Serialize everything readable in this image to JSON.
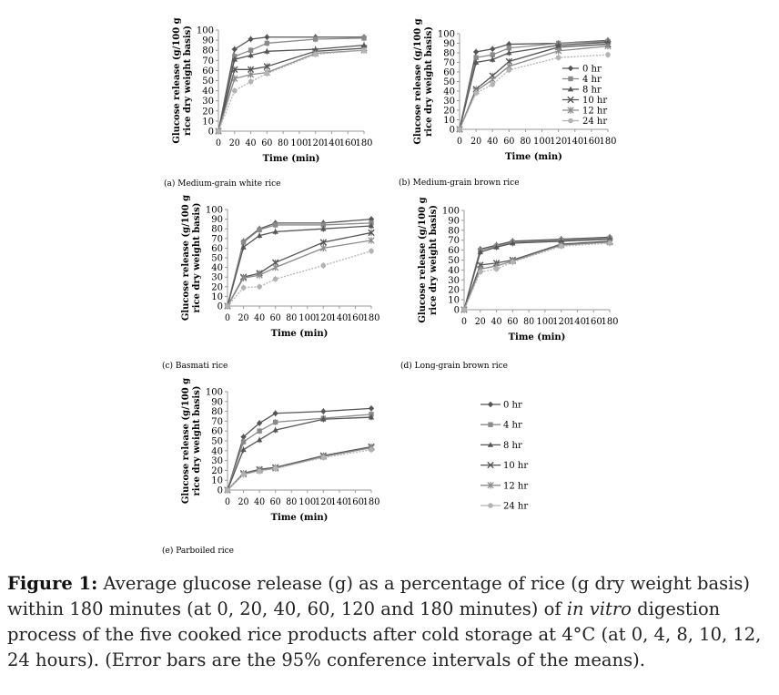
{
  "colors": {
    "dark": "#555555",
    "mid": "#8a8a8a",
    "light": "#b3b3b3",
    "axis": "#9a9a9a"
  },
  "chart_data": [
    {
      "id": "a",
      "type": "line",
      "caption": "(a) Medium-grain white rice",
      "xlabel": "Time (min)",
      "ylabel_line1": "Glucose release (g/100 g",
      "ylabel_line2": "rice dry weight basis)",
      "xticks": [
        "0",
        "20",
        "40",
        "60",
        "80",
        "100",
        "120",
        "140",
        "160",
        "180"
      ],
      "yticks": [
        "0",
        "10",
        "20",
        "30",
        "40",
        "50",
        "60",
        "70",
        "80",
        "90",
        "100"
      ],
      "x": [
        0,
        20,
        40,
        60,
        120,
        180
      ],
      "xlim": [
        0,
        180
      ],
      "ylim": [
        0,
        100
      ],
      "legend": "none",
      "series": [
        {
          "name": "0 hr",
          "values": [
            0,
            81,
            91,
            93,
            93,
            93
          ]
        },
        {
          "name": "4 hr",
          "values": [
            0,
            74,
            80,
            87,
            91,
            92
          ]
        },
        {
          "name": "8 hr",
          "values": [
            0,
            71,
            75,
            79,
            81,
            85
          ]
        },
        {
          "name": "10 hr",
          "values": [
            0,
            61,
            61,
            64,
            79,
            82
          ]
        },
        {
          "name": "12 hr",
          "values": [
            0,
            52,
            56,
            58,
            77,
            80
          ]
        },
        {
          "name": "24 hr",
          "values": [
            0,
            40,
            49,
            57,
            76,
            80
          ]
        }
      ]
    },
    {
      "id": "b",
      "type": "line",
      "caption": "(b) Medium-grain brown rice",
      "xlabel": "Time (min)",
      "ylabel_line1": "Glucose release (g/100 g",
      "ylabel_line2": "rice dry weight basis)",
      "xticks": [
        "0",
        "20",
        "40",
        "60",
        "80",
        "100",
        "120",
        "140",
        "160",
        "180"
      ],
      "yticks": [
        "0",
        "10",
        "20",
        "30",
        "40",
        "50",
        "60",
        "70",
        "80",
        "90",
        "100"
      ],
      "x": [
        0,
        20,
        40,
        60,
        120,
        180
      ],
      "xlim": [
        0,
        180
      ],
      "ylim": [
        0,
        100
      ],
      "legend": "right",
      "series": [
        {
          "name": "0 hr",
          "values": [
            0,
            81,
            84,
            89,
            90,
            93
          ]
        },
        {
          "name": "4 hr",
          "values": [
            0,
            75,
            78,
            85,
            90,
            92
          ]
        },
        {
          "name": "8 hr",
          "values": [
            0,
            70,
            73,
            80,
            88,
            91
          ]
        },
        {
          "name": "10 hr",
          "values": [
            0,
            42,
            56,
            71,
            86,
            89
          ]
        },
        {
          "name": "12 hr",
          "values": [
            0,
            40,
            52,
            66,
            82,
            87
          ]
        },
        {
          "name": "24 hr",
          "values": [
            0,
            38,
            47,
            62,
            75,
            78
          ]
        }
      ]
    },
    {
      "id": "c",
      "type": "line",
      "caption": "(c) Basmati rice",
      "xlabel": "Time (min)",
      "ylabel_line1": "Glucose release (g/100 g",
      "ylabel_line2": "rice dry weight basis)",
      "xticks": [
        "0",
        "20",
        "40",
        "60",
        "80",
        "100",
        "120",
        "140",
        "160",
        "180"
      ],
      "yticks": [
        "0",
        "10",
        "20",
        "30",
        "40",
        "50",
        "60",
        "70",
        "80",
        "90",
        "100"
      ],
      "x": [
        0,
        20,
        40,
        60,
        120,
        180
      ],
      "xlim": [
        0,
        180
      ],
      "ylim": [
        0,
        100
      ],
      "legend": "none",
      "series": [
        {
          "name": "0 hr",
          "values": [
            0,
            67,
            80,
            86,
            86,
            90
          ]
        },
        {
          "name": "4 hr",
          "values": [
            0,
            66,
            79,
            84,
            84,
            86
          ]
        },
        {
          "name": "8 hr",
          "values": [
            0,
            61,
            73,
            77,
            80,
            83
          ]
        },
        {
          "name": "10 hr",
          "values": [
            0,
            30,
            34,
            45,
            66,
            76
          ]
        },
        {
          "name": "12 hr",
          "values": [
            0,
            29,
            32,
            40,
            60,
            68
          ]
        },
        {
          "name": "24 hr",
          "values": [
            0,
            19,
            20,
            28,
            42,
            57
          ]
        }
      ]
    },
    {
      "id": "d",
      "type": "line",
      "caption": "(d) Long-grain brown rice",
      "xlabel": "Time (min)",
      "ylabel_line1": "Glucose release (g/100 g",
      "ylabel_line2": "rice dry weight basis)",
      "xticks": [
        "0",
        "20",
        "40",
        "60",
        "80",
        "100",
        "120",
        "140",
        "160",
        "180"
      ],
      "yticks": [
        "0",
        "10",
        "20",
        "30",
        "40",
        "50",
        "60",
        "70",
        "80",
        "90",
        "100"
      ],
      "x": [
        0,
        20,
        40,
        60,
        120,
        180
      ],
      "xlim": [
        0,
        180
      ],
      "ylim": [
        0,
        100
      ],
      "legend": "none",
      "series": [
        {
          "name": "0 hr",
          "values": [
            0,
            61,
            65,
            69,
            71,
            73
          ]
        },
        {
          "name": "4 hr",
          "values": [
            0,
            60,
            64,
            68,
            70,
            72
          ]
        },
        {
          "name": "8 hr",
          "values": [
            0,
            58,
            63,
            67,
            69,
            71
          ]
        },
        {
          "name": "10 hr",
          "values": [
            0,
            45,
            47,
            50,
            66,
            69
          ]
        },
        {
          "name": "12 hr",
          "values": [
            0,
            41,
            44,
            49,
            65,
            68
          ]
        },
        {
          "name": "24 hr",
          "values": [
            0,
            38,
            41,
            48,
            64,
            67
          ]
        }
      ]
    },
    {
      "id": "e",
      "type": "line",
      "caption": "(e) Parboiled rice",
      "xlabel": "Time (min)",
      "ylabel_line1": "Glucose release (g/100 g",
      "ylabel_line2": "rice dry weight basis)",
      "xticks": [
        "0",
        "20",
        "40",
        "60",
        "80",
        "100",
        "120",
        "140",
        "160",
        "180"
      ],
      "yticks": [
        "0",
        "10",
        "20",
        "30",
        "40",
        "50",
        "60",
        "70",
        "80",
        "90",
        "100"
      ],
      "x": [
        0,
        20,
        40,
        60,
        120,
        180
      ],
      "xlim": [
        0,
        180
      ],
      "ylim": [
        0,
        100
      ],
      "legend": "separate",
      "series": [
        {
          "name": "0 hr",
          "values": [
            0,
            54,
            68,
            78,
            80,
            83
          ]
        },
        {
          "name": "4 hr",
          "values": [
            0,
            49,
            60,
            69,
            73,
            77
          ]
        },
        {
          "name": "8 hr",
          "values": [
            0,
            41,
            51,
            61,
            72,
            74
          ]
        },
        {
          "name": "10 hr",
          "values": [
            0,
            17,
            21,
            23,
            35,
            44
          ]
        },
        {
          "name": "12 hr",
          "values": [
            0,
            16,
            20,
            22,
            34,
            43
          ]
        },
        {
          "name": "24 hr",
          "values": [
            0,
            16,
            19,
            22,
            33,
            41
          ]
        }
      ]
    }
  ],
  "caption": {
    "label": "Figure 1:",
    "text_before": " Average glucose release (g) as a percentage of rice (g dry weight basis) within 180 minutes (at 0, 20, 40, 60, 120 and 180 minutes) of ",
    "italic": "in vitro",
    "text_after": " digestion process of the five cooked rice products after cold storage at 4°C (at 0, 4, 8, 10, 12, 24 hours). (Error bars are the 95% conference intervals of the means)."
  }
}
